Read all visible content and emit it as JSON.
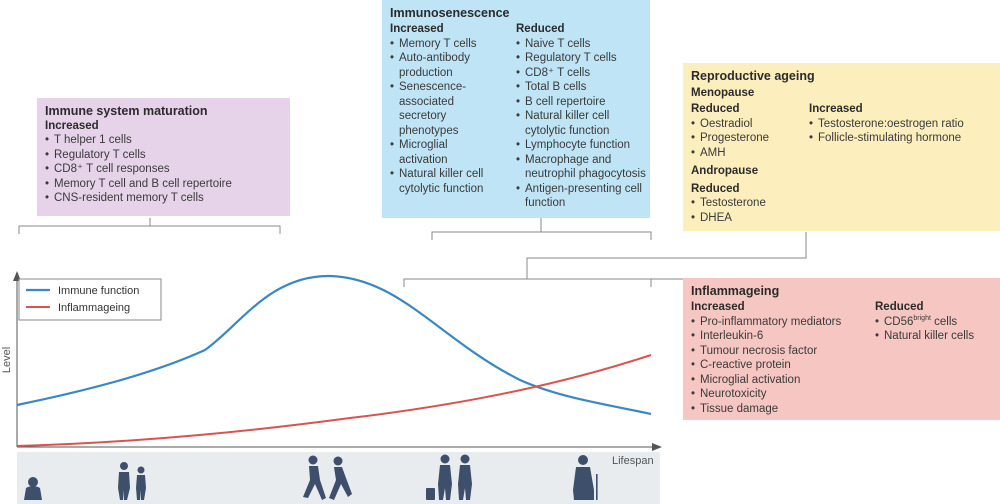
{
  "maturation": {
    "title": "Immune system maturation",
    "increased_label": "Increased",
    "increased": [
      "T helper 1 cells",
      "Regulatory T cells",
      "CD8⁺ T cell responses",
      "Memory T cell and B cell repertoire",
      "CNS-resident memory T cells"
    ]
  },
  "immunosenescence": {
    "title": "Immunosenescence",
    "increased_label": "Increased",
    "increased": [
      "Memory T cells",
      "Auto-antibody",
      "production",
      "Senescence-",
      "associated",
      "secretory",
      "phenotypes",
      "Microglial",
      "activation",
      "Natural killer cell",
      "cytolytic function"
    ],
    "reduced_label": "Reduced",
    "reduced": [
      "Naive T cells",
      "Regulatory T cells",
      "CD8⁺ T cells",
      "Total B cells",
      "B cell repertoire",
      "Natural killer cell",
      "cytolytic function",
      "Lymphocyte function",
      "Macrophage and",
      "neutrophil phagocytosis",
      "Antigen-presenting cell",
      "function"
    ]
  },
  "reproductive": {
    "title": "Reproductive ageing",
    "menopause_label": "Menopause",
    "menopause_reduced_label": "Reduced",
    "menopause_reduced": [
      "Oestradiol",
      "Progesterone",
      "AMH"
    ],
    "menopause_increased_label": "Increased",
    "menopause_increased": [
      "Testosterone:oestrogen ratio",
      "Follicle-stimulating hormone"
    ],
    "andropause_label": "Andropause",
    "andropause_reduced_label": "Reduced",
    "andropause_reduced": [
      "Testosterone",
      "DHEA"
    ]
  },
  "inflammageing": {
    "title": "Inflammageing",
    "increased_label": "Increased",
    "increased": [
      "Pro-inflammatory mediators",
      "Interleukin-6",
      "Tumour necrosis factor",
      "C-reactive protein",
      "Microglial activation",
      "Neurotoxicity",
      "Tissue damage"
    ],
    "reduced_label": "Reduced",
    "reduced_cd56_prefix": "CD56",
    "reduced_cd56_sup": "bright",
    "reduced_cd56_suffix": " cells",
    "reduced_other": [
      "Natural killer cells"
    ]
  },
  "graph": {
    "y_label": "Level",
    "x_label": "Lifespan",
    "legend": [
      "Immune function",
      "Inflammageing"
    ]
  },
  "colors": {
    "immune_line": "#3a87c2",
    "inflam_line": "#d9534f",
    "maturation_box": "#e6d3ea",
    "immunosenescence_box": "#bfe4f5",
    "reproductive_box": "#fdeebd",
    "inflammageing_box": "#f6c7c2",
    "silhouette": "#3d4f6b"
  }
}
